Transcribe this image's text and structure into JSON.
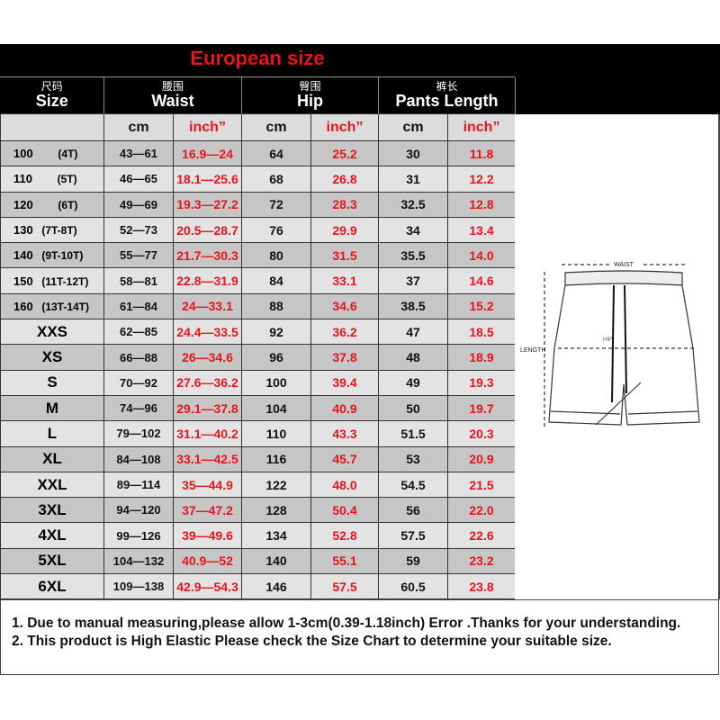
{
  "title": "European size",
  "headers": [
    {
      "cn": "尺码",
      "en": "Size"
    },
    {
      "cn": "腰围",
      "en": "Waist"
    },
    {
      "cn": "臀围",
      "en": "Hip"
    },
    {
      "cn": "裤长",
      "en": "Pants Length"
    }
  ],
  "units": {
    "cm": "cm",
    "inch": "inch”"
  },
  "rows": [
    {
      "size": "100",
      "age": "(4T)",
      "waist_cm": "43—61",
      "waist_in": "16.9—24",
      "hip_cm": "64",
      "hip_in": "25.2",
      "len_cm": "30",
      "len_in": "11.8"
    },
    {
      "size": "110",
      "age": "(5T)",
      "waist_cm": "46—65",
      "waist_in": "18.1—25.6",
      "hip_cm": "68",
      "hip_in": "26.8",
      "len_cm": "31",
      "len_in": "12.2"
    },
    {
      "size": "120",
      "age": "(6T)",
      "waist_cm": "49—69",
      "waist_in": "19.3—27.2",
      "hip_cm": "72",
      "hip_in": "28.3",
      "len_cm": "32.5",
      "len_in": "12.8"
    },
    {
      "size": "130",
      "age": "(7T-8T)",
      "waist_cm": "52—73",
      "waist_in": "20.5—28.7",
      "hip_cm": "76",
      "hip_in": "29.9",
      "len_cm": "34",
      "len_in": "13.4"
    },
    {
      "size": "140",
      "age": "(9T-10T)",
      "waist_cm": "55—77",
      "waist_in": "21.7—30.3",
      "hip_cm": "80",
      "hip_in": "31.5",
      "len_cm": "35.5",
      "len_in": "14.0"
    },
    {
      "size": "150",
      "age": "(11T-12T)",
      "waist_cm": "58—81",
      "waist_in": "22.8—31.9",
      "hip_cm": "84",
      "hip_in": "33.1",
      "len_cm": "37",
      "len_in": "14.6"
    },
    {
      "size": "160",
      "age": "(13T-14T)",
      "waist_cm": "61—84",
      "waist_in": "24—33.1",
      "hip_cm": "88",
      "hip_in": "34.6",
      "len_cm": "38.5",
      "len_in": "15.2"
    },
    {
      "size": "XXS",
      "waist_cm": "62—85",
      "waist_in": "24.4—33.5",
      "hip_cm": "92",
      "hip_in": "36.2",
      "len_cm": "47",
      "len_in": "18.5"
    },
    {
      "size": "XS",
      "waist_cm": "66—88",
      "waist_in": "26—34.6",
      "hip_cm": "96",
      "hip_in": "37.8",
      "len_cm": "48",
      "len_in": "18.9"
    },
    {
      "size": "S",
      "waist_cm": "70—92",
      "waist_in": "27.6—36.2",
      "hip_cm": "100",
      "hip_in": "39.4",
      "len_cm": "49",
      "len_in": "19.3"
    },
    {
      "size": "M",
      "waist_cm": "74—96",
      "waist_in": "29.1—37.8",
      "hip_cm": "104",
      "hip_in": "40.9",
      "len_cm": "50",
      "len_in": "19.7"
    },
    {
      "size": "L",
      "waist_cm": "79—102",
      "waist_in": "31.1—40.2",
      "hip_cm": "110",
      "hip_in": "43.3",
      "len_cm": "51.5",
      "len_in": "20.3"
    },
    {
      "size": "XL",
      "waist_cm": "84—108",
      "waist_in": "33.1—42.5",
      "hip_cm": "116",
      "hip_in": "45.7",
      "len_cm": "53",
      "len_in": "20.9"
    },
    {
      "size": "XXL",
      "waist_cm": "89—114",
      "waist_in": "35—44.9",
      "hip_cm": "122",
      "hip_in": "48.0",
      "len_cm": "54.5",
      "len_in": "21.5"
    },
    {
      "size": "3XL",
      "waist_cm": "94—120",
      "waist_in": "37—47.2",
      "hip_cm": "128",
      "hip_in": "50.4",
      "len_cm": "56",
      "len_in": "22.0"
    },
    {
      "size": "4XL",
      "waist_cm": "99—126",
      "waist_in": "39—49.6",
      "hip_cm": "134",
      "hip_in": "52.8",
      "len_cm": "57.5",
      "len_in": "22.6"
    },
    {
      "size": "5XL",
      "waist_cm": "104—132",
      "waist_in": "40.9—52",
      "hip_cm": "140",
      "hip_in": "55.1",
      "len_cm": "59",
      "len_in": "23.2"
    },
    {
      "size": "6XL",
      "waist_cm": "109—138",
      "waist_in": "42.9—54.3",
      "hip_cm": "146",
      "hip_in": "57.5",
      "len_cm": "60.5",
      "len_in": "23.8"
    }
  ],
  "diagram": {
    "waist": "WAIST",
    "hip": "HIP",
    "length": "LENGTH"
  },
  "notes": [
    "1. Due to manual measuring,please allow 1-3cm(0.39-1.18inch) Error .Thanks for your understanding.",
    "2. This product is High Elastic Please check the Size Chart to determine your suitable size."
  ],
  "colors": {
    "accent_red": "#e8141b",
    "header_bg": "#000000",
    "row_light": "#e3e3e3",
    "row_dark": "#c6c6c6"
  }
}
